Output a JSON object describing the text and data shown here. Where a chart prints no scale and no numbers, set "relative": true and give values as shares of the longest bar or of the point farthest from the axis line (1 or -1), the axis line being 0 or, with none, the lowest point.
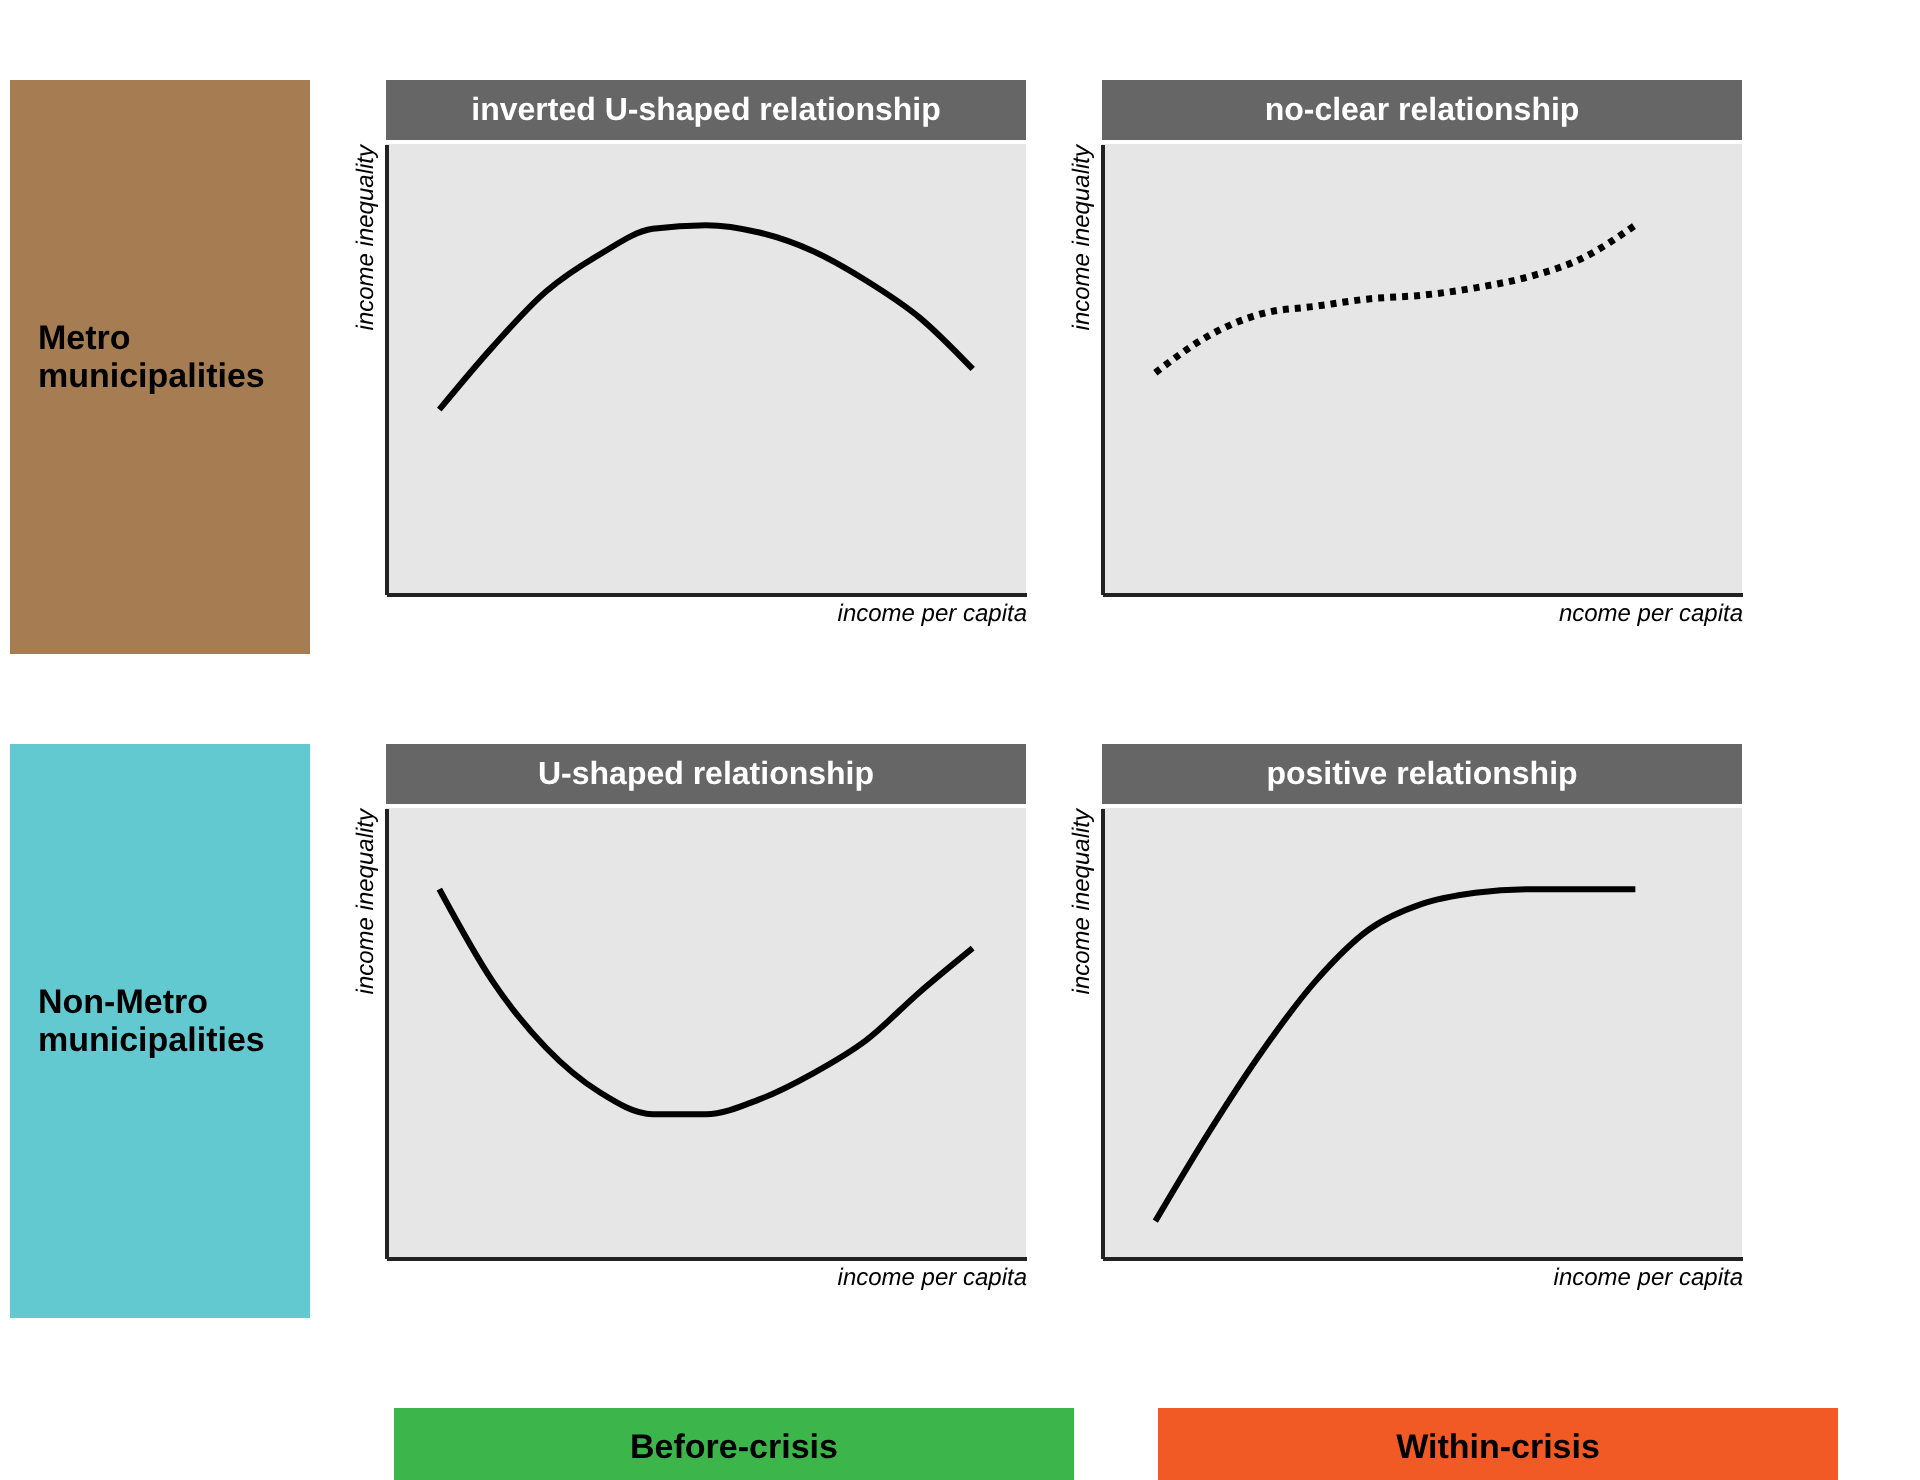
{
  "chart_data": [
    {
      "type": "line",
      "title": "inverted U-shaped relationship",
      "xlabel": "income per capita",
      "ylabel": "income inequality",
      "relative": true,
      "annotations": [
        "Metro municipalities"
      ],
      "categories": [
        null,
        null,
        null,
        null,
        null,
        null,
        null,
        null,
        null,
        null,
        null,
        null,
        null
      ],
      "series": [
        {
          "color": "#000000",
          "values": [
            null,
            0.5,
            0.67,
            0.82,
            0.92,
            0.99,
            1.0,
            0.98,
            0.93,
            0.85,
            0.75,
            0.61,
            null
          ]
        }
      ]
    },
    {
      "type": "line",
      "title": "no-clear relationship",
      "xlabel": "ncome per capita",
      "ylabel": "income inequality",
      "relative": true,
      "line_style": "dotted",
      "categories": [
        null,
        null,
        null,
        null,
        null,
        null,
        null,
        null,
        null,
        null,
        null,
        null,
        null
      ],
      "series": [
        {
          "color": "#000000",
          "values": [
            null,
            0.6,
            0.7,
            0.76,
            0.78,
            0.8,
            0.81,
            0.83,
            0.86,
            0.91,
            1.0,
            null,
            null
          ]
        }
      ]
    },
    {
      "type": "line",
      "title": "U-shaped relationship",
      "xlabel": "income per capita",
      "ylabel": "income inequality",
      "relative": true,
      "annotations": [
        "Non-Metro municipalities",
        "Before-crisis"
      ],
      "categories": [
        null,
        null,
        null,
        null,
        null,
        null,
        null,
        null,
        null,
        null,
        null,
        null,
        null
      ],
      "series": [
        {
          "color": "#000000",
          "values": [
            null,
            1.0,
            0.75,
            0.57,
            0.45,
            0.39,
            0.39,
            0.43,
            0.5,
            0.59,
            0.72,
            0.84,
            null
          ]
        }
      ]
    },
    {
      "type": "line",
      "title": "positive relationship",
      "xlabel": "income per capita",
      "ylabel": "income inequality",
      "relative": true,
      "annotations": [
        "Within-crisis"
      ],
      "categories": [
        null,
        null,
        null,
        null,
        null,
        null,
        null,
        null,
        null,
        null,
        null,
        null,
        null
      ],
      "series": [
        {
          "color": "#000000",
          "values": [
            null,
            0.1,
            0.34,
            0.56,
            0.75,
            0.89,
            0.96,
            0.99,
            1.0,
            1.0,
            1.0,
            null,
            null
          ]
        }
      ]
    }
  ]
}
